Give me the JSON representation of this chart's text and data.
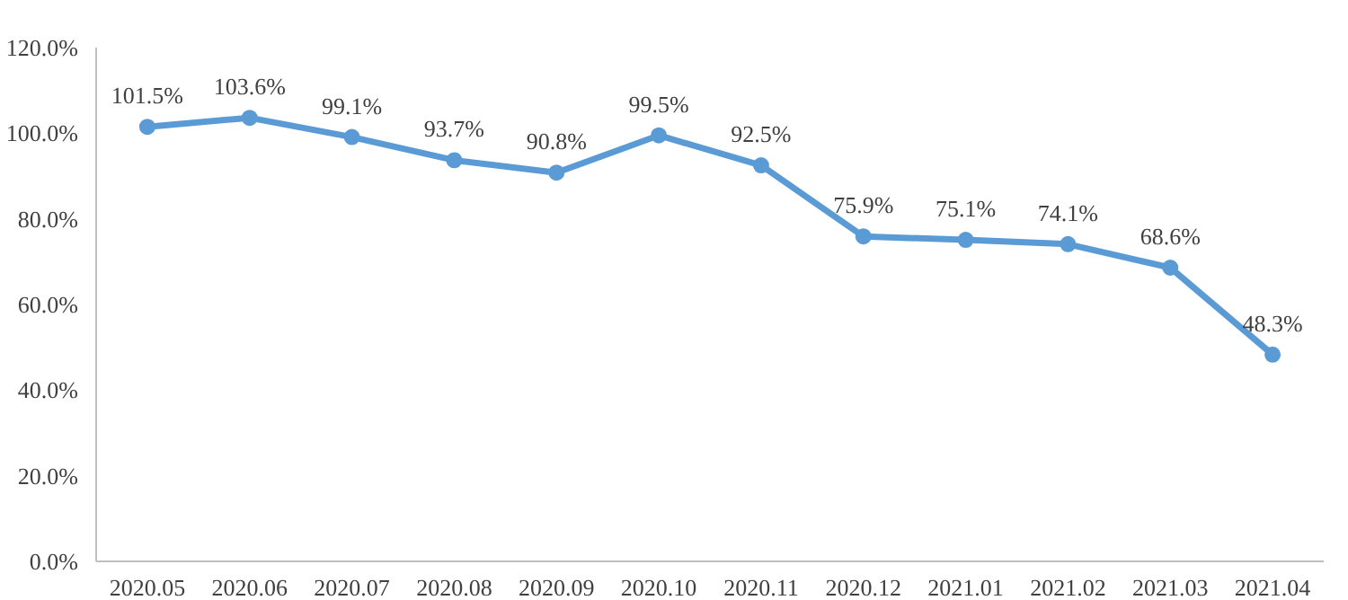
{
  "chart_data": {
    "type": "line",
    "categories": [
      "2020.05",
      "2020.06",
      "2020.07",
      "2020.08",
      "2020.09",
      "2020.10",
      "2020.11",
      "2020.12",
      "2021.01",
      "2021.02",
      "2021.03",
      "2021.04"
    ],
    "series": [
      {
        "color": "#5b9bd5",
        "values": [
          101.5,
          103.6,
          99.1,
          93.7,
          90.8,
          99.5,
          92.5,
          75.9,
          75.1,
          74.1,
          68.6,
          48.3
        ],
        "value_labels": [
          "101.5%",
          "103.6%",
          "99.1%",
          "93.7%",
          "90.8%",
          "99.5%",
          "92.5%",
          "75.9%",
          "75.1%",
          "74.1%",
          "68.6%",
          "48.3%"
        ]
      }
    ],
    "ylim": [
      0,
      120
    ],
    "yticks": [
      {
        "value": 0,
        "label": "0.0%"
      },
      {
        "value": 20,
        "label": "20.0%"
      },
      {
        "value": 40,
        "label": "40.0%"
      },
      {
        "value": 60,
        "label": "60.0%"
      },
      {
        "value": 80,
        "label": "80.0%"
      },
      {
        "value": 100,
        "label": "100.0%"
      },
      {
        "value": 120,
        "label": "120.0%"
      }
    ],
    "grid": false,
    "marker": "circle",
    "line_style": "solid"
  }
}
